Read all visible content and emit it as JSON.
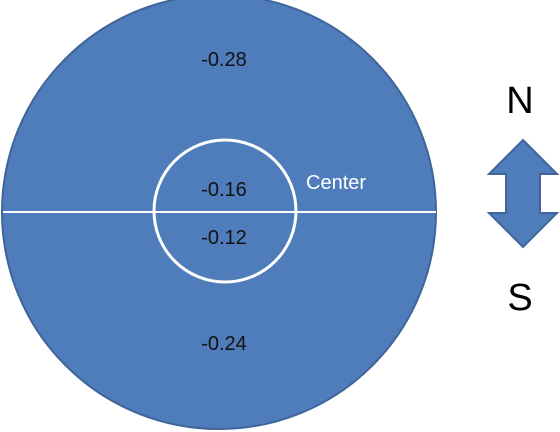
{
  "colors": {
    "disk_fill": "#4F7DBC",
    "disk_stroke": "#3F659A",
    "divider": "#FFFFFF",
    "center_ring": "#FFFFFF",
    "arrow_fill": "#4F7DBC",
    "arrow_stroke": "#3F659A"
  },
  "regions": {
    "north_outer": "-0.28",
    "north_center": "-0.16",
    "south_center": "-0.12",
    "south_outer": "-0.24"
  },
  "center_label": "Center",
  "compass": {
    "north": "N",
    "south": "S",
    "arrow_icon": "double-headed-vertical-arrow-icon"
  }
}
